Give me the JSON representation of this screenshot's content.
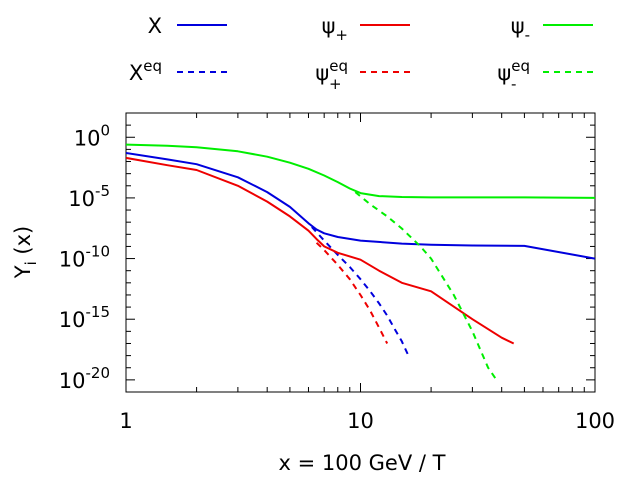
{
  "chart_data": {
    "type": "line",
    "title": "",
    "xlabel": "x = 100 GeV / T",
    "ylabel_main": "Y",
    "ylabel_sub": "i",
    "ylabel_rest": " (x)",
    "xscale": "log",
    "yscale": "log",
    "xlim": [
      1,
      100
    ],
    "ylim": [
      1e-21,
      100.0
    ],
    "x_ticks": [
      {
        "value": 1,
        "label": "1"
      },
      {
        "value": 10,
        "label": "10"
      },
      {
        "value": 100,
        "label": "100"
      }
    ],
    "y_ticks": [
      {
        "value": 1,
        "base": "10",
        "exp": "0"
      },
      {
        "value": 1e-05,
        "base": "10",
        "exp": "-5"
      },
      {
        "value": 1e-10,
        "base": "10",
        "exp": "-10"
      },
      {
        "value": 1e-15,
        "base": "10",
        "exp": "-15"
      },
      {
        "value": 1e-20,
        "base": "10",
        "exp": "-20"
      }
    ],
    "legend_position": "top",
    "series": [
      {
        "name": "X",
        "sup": "",
        "sub": "",
        "color": "#0000dd",
        "dash": "solid",
        "x": [
          1,
          1.5,
          2,
          3,
          4,
          5,
          6,
          6.5,
          7,
          8,
          10,
          15,
          20,
          30,
          50,
          100
        ],
        "y": [
          0.05,
          0.015,
          0.006,
          0.0005,
          3e-05,
          1.8e-06,
          8e-08,
          2.5e-08,
          1.2e-08,
          6e-09,
          3e-09,
          1.7e-09,
          1.4e-09,
          1.2e-09,
          1.1e-09,
          1e-10
        ]
      },
      {
        "name": "X",
        "sup": "eq",
        "sub": "",
        "color": "#0000dd",
        "dash": "dashed",
        "x": [
          6.2,
          7,
          8,
          9,
          10,
          11,
          12,
          13,
          14,
          15,
          16
        ],
        "y": [
          4e-08,
          3e-09,
          2e-10,
          2e-11,
          2e-12,
          2e-13,
          2e-14,
          2e-15,
          1.5e-16,
          1.5e-17,
          1e-18
        ]
      },
      {
        "name": "ψ",
        "sup": "",
        "sub": "+",
        "color": "#ee0000",
        "dash": "solid",
        "x": [
          1,
          1.5,
          2,
          3,
          4,
          5,
          6,
          6.5,
          7,
          8,
          10,
          12,
          15,
          20,
          30,
          40,
          45
        ],
        "y": [
          0.02,
          0.005,
          0.002,
          0.0001,
          5e-06,
          3e-07,
          2e-08,
          4e-09,
          1e-09,
          3e-10,
          8e-11,
          1e-11,
          1e-12,
          2e-13,
          1e-15,
          3e-17,
          1e-17
        ]
      },
      {
        "name": "ψ",
        "sup": "eq",
        "sub": "+",
        "color": "#ee0000",
        "dash": "dashed",
        "x": [
          6.5,
          7,
          8,
          9,
          10,
          11,
          12,
          13
        ],
        "y": [
          2e-09,
          5e-10,
          3e-11,
          2e-12,
          1e-13,
          5e-15,
          2e-16,
          1e-17
        ]
      },
      {
        "name": "ψ",
        "sup": "",
        "sub": "-",
        "color": "#00ee00",
        "dash": "solid",
        "x": [
          1,
          1.5,
          2,
          3,
          4,
          5,
          6,
          7,
          8,
          9,
          10,
          12,
          15,
          20,
          30,
          50,
          100
        ],
        "y": [
          0.25,
          0.2,
          0.15,
          0.07,
          0.025,
          0.008,
          0.0025,
          0.0007,
          0.0002,
          6e-05,
          2.5e-05,
          1.4e-05,
          1.2e-05,
          1.1e-05,
          1.1e-05,
          1.1e-05,
          1e-05
        ]
      },
      {
        "name": "ψ",
        "sup": "eq",
        "sub": "-",
        "color": "#00ee00",
        "dash": "dashed",
        "x": [
          9.5,
          11,
          13,
          15,
          18,
          20,
          25,
          30,
          35,
          38
        ],
        "y": [
          3e-05,
          3e-06,
          3e-07,
          3e-08,
          1e-09,
          1e-10,
          1e-13,
          1e-16,
          1e-19,
          1e-20
        ]
      }
    ]
  }
}
